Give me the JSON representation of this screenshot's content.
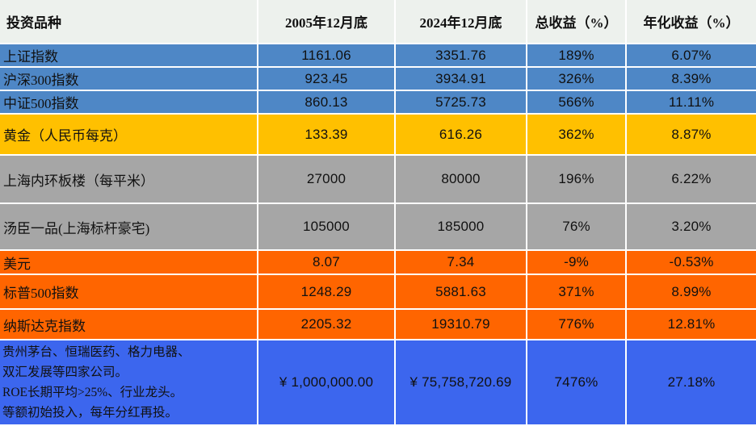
{
  "chart_data": {
    "type": "table",
    "columns": [
      "投资品种",
      "2005年12月底",
      "2024年12月底",
      "总收益（%）",
      "年化收益（%）"
    ],
    "rows": [
      {
        "label": "上证指数",
        "v2005": "1161.06",
        "v2024": "3351.76",
        "total": "189%",
        "annual": "6.07%",
        "bg": "#4e87c6"
      },
      {
        "label": "沪深300指数",
        "v2005": "923.45",
        "v2024": "3934.91",
        "total": "326%",
        "annual": "8.39%",
        "bg": "#4e87c6"
      },
      {
        "label": "中证500指数",
        "v2005": "860.13",
        "v2024": "5725.73",
        "total": "566%",
        "annual": "11.11%",
        "bg": "#4e87c6"
      },
      {
        "label": "黄金（人民币每克）",
        "v2005": "133.39",
        "v2024": "616.26",
        "total": "362%",
        "annual": "8.87%",
        "bg": "#ffc000"
      },
      {
        "label": "上海内环板楼（每平米）",
        "v2005": "27000",
        "v2024": "80000",
        "total": "196%",
        "annual": "6.22%",
        "bg": "#a6a6a6"
      },
      {
        "label": "汤臣一品(上海标杆豪宅)",
        "v2005": "105000",
        "v2024": "185000",
        "total": "76%",
        "annual": "3.20%",
        "bg": "#a6a6a6"
      },
      {
        "label": "美元",
        "v2005": "8.07",
        "v2024": "7.34",
        "total": "-9%",
        "annual": "-0.53%",
        "bg": "#ff6500"
      },
      {
        "label": "标普500指数",
        "v2005": "1248.29",
        "v2024": "5881.63",
        "total": "371%",
        "annual": "8.99%",
        "bg": "#ff6500"
      },
      {
        "label": "纳斯达克指数",
        "v2005": "2205.32",
        "v2024": "19310.79",
        "total": "776%",
        "annual": "12.81%",
        "bg": "#ff6500"
      },
      {
        "label": "贵州茅台、恒瑞医药、格力电器、\n双汇发展等四家公司。\nROE长期平均>25%、行业龙头。\n等额初始投入，每年分红再投。",
        "v2005": "¥ 1,000,000.00",
        "v2024": "¥ 75,758,720.69",
        "total": "7476%",
        "annual": "27.18%",
        "bg": "#3c66ee"
      }
    ]
  },
  "colors": {
    "header_bg": "#edf1ed",
    "index_blue": "#4e87c6",
    "gold": "#ffc000",
    "gray": "#a6a6a6",
    "orange": "#ff6500",
    "portfolio_blue": "#3c66ee",
    "divider": "#ffffff",
    "text": "#111111"
  }
}
